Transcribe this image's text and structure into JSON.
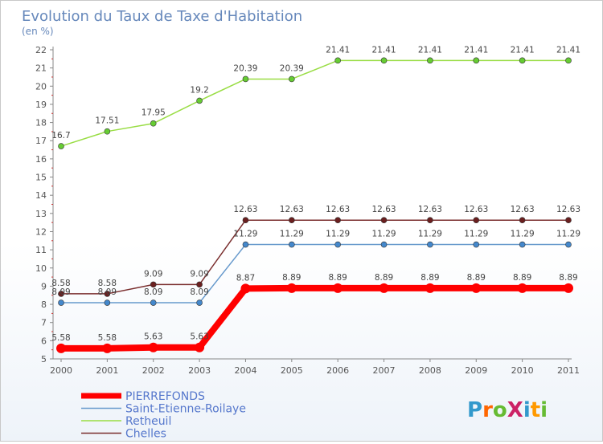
{
  "chart_data": {
    "type": "line",
    "title": "Evolution du Taux de Taxe d'Habitation",
    "subtitle": "(en %)",
    "x": [
      "2000",
      "2001",
      "2002",
      "2003",
      "2004",
      "2005",
      "2006",
      "2007",
      "2008",
      "2009",
      "2010",
      "2011"
    ],
    "ylim": [
      5,
      22
    ],
    "yticks": [
      5,
      6,
      7,
      8,
      9,
      10,
      11,
      12,
      13,
      14,
      15,
      16,
      17,
      18,
      19,
      20,
      21,
      22
    ],
    "grid": false,
    "legend_position": "bottom-left",
    "series": [
      {
        "name": "Retheuil",
        "color": "#99dd44",
        "marker": "#66cc33",
        "values": [
          16.7,
          17.51,
          17.95,
          19.2,
          20.39,
          20.39,
          21.41,
          21.41,
          21.41,
          21.41,
          21.41,
          21.41
        ],
        "labels": [
          "16.7",
          "17.51",
          "17.95",
          "19.2",
          "20.39",
          "20.39",
          "21.41",
          "21.41",
          "21.41",
          "21.41",
          "21.41",
          "21.41"
        ]
      },
      {
        "name": "Chelles",
        "color": "#7a2e2e",
        "marker": "#6b1f1f",
        "values": [
          8.58,
          8.58,
          9.09,
          9.09,
          12.63,
          12.63,
          12.63,
          12.63,
          12.63,
          12.63,
          12.63,
          12.63
        ],
        "labels": [
          "8.58",
          "8.58",
          "9.09",
          "9.09",
          "12.63",
          "12.63",
          "12.63",
          "12.63",
          "12.63",
          "12.63",
          "12.63",
          "12.63"
        ]
      },
      {
        "name": "Saint-Etienne-Roilaye",
        "color": "#6699cc",
        "marker": "#4488cc",
        "values": [
          8.09,
          8.09,
          8.09,
          8.09,
          11.29,
          11.29,
          11.29,
          11.29,
          11.29,
          11.29,
          11.29,
          11.29
        ],
        "labels": [
          "8.09",
          "8.09",
          "8.09",
          "8.09",
          "11.29",
          "11.29",
          "11.29",
          "11.29",
          "11.29",
          "11.29",
          "11.29",
          "11.29"
        ]
      },
      {
        "name": "PIERREFONDS",
        "color": "#ff0000",
        "marker": "#ff0000",
        "values": [
          5.58,
          5.58,
          5.63,
          5.63,
          8.87,
          8.89,
          8.89,
          8.89,
          8.89,
          8.89,
          8.89,
          8.89
        ],
        "labels": [
          "5.58",
          "5.58",
          "5.63",
          "5.63",
          "8.87",
          "8.89",
          "8.89",
          "8.89",
          "8.89",
          "8.89",
          "8.89",
          "8.89"
        ]
      }
    ],
    "legend": [
      "PIERREFONDS",
      "Saint-Etienne-Roilaye",
      "Retheuil",
      "Chelles"
    ]
  },
  "logo": {
    "text": "ProXiti",
    "letter_colors": [
      "#3399cc",
      "#ff6600",
      "#66bb33",
      "#cc2266",
      "#3399cc",
      "#ff9900",
      "#66bb33"
    ]
  }
}
